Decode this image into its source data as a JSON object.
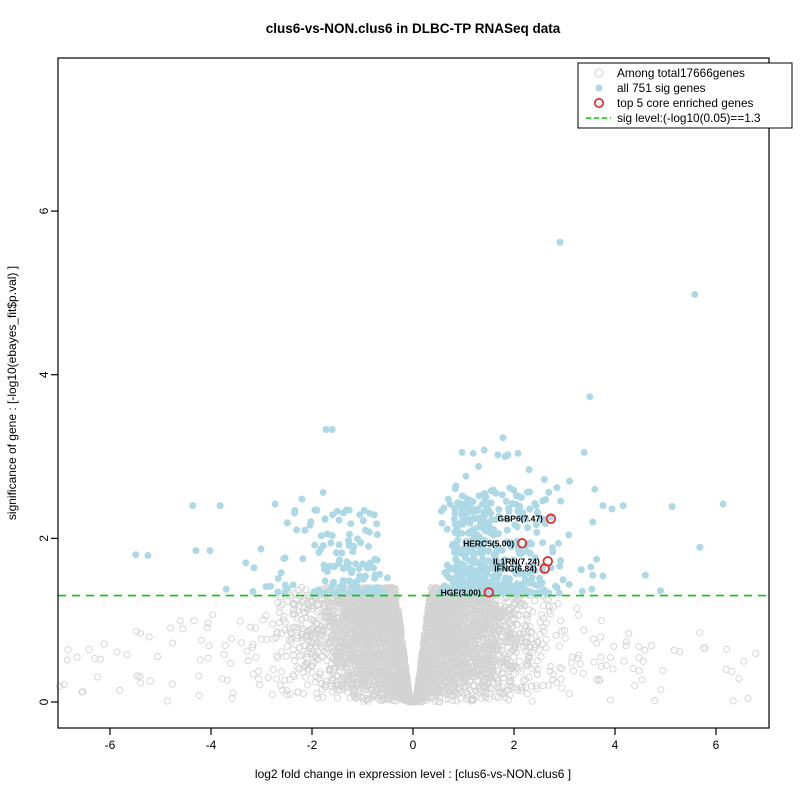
{
  "chart_data": {
    "type": "scatter",
    "subtype": "volcano-plot",
    "title": "clus6-vs-NON.clus6 in DLBC-TP RNASeq data",
    "xlabel": "log2 fold change in expression level : [clus6-vs-NON.clus6 ]",
    "ylabel": "significance of gene : [-log10(ebayes_fit$p.val) ]",
    "xlim": [
      -7.05,
      7.07
    ],
    "ylim": [
      -0.32,
      7.87
    ],
    "xticks": [
      -6,
      -4,
      -2,
      0,
      2,
      4,
      6
    ],
    "yticks": [
      0,
      2,
      4,
      6
    ],
    "grid": false,
    "legend_position": "top-right",
    "colors": {
      "grey": "#D3D3D3",
      "blue": "#ADD8E6",
      "red": "#E02727",
      "green": "#00CC00",
      "frame": "#000000"
    },
    "sig_line": {
      "y": 1.3,
      "style": "dashed",
      "color": "#00CC00",
      "label": "sig level:(-log10(0.05)==1.3"
    },
    "series": [
      {
        "name": "Among total17666genes",
        "marker": "open-circle",
        "color": "#D3D3D3",
        "total_count": 17666,
        "description": "non-significant genes forming volcano lobes, y 0 to ~1.4, V-shaped notch reaching y=0 at x=0, sparse tails to |x|~7"
      },
      {
        "name": "all 751 sig genes",
        "marker": "filled-circle",
        "color": "#ADD8E6",
        "total_count": 751,
        "description": "significant genes above y=1.3; dense cluster x 0.5..3 y 1.33..2.1, sparser left cluster x -0.5..-3.7"
      },
      {
        "name": "top 5 core enriched genes",
        "marker": "open-circle",
        "color": "#E02727",
        "total_count": 5
      }
    ],
    "enriched_genes": [
      {
        "name": "GBP6",
        "label": "GBP6(7.47)",
        "x": 2.73,
        "y": 2.24
      },
      {
        "name": "HERC5",
        "label": "HERC5(5.00)",
        "x": 2.16,
        "y": 1.94
      },
      {
        "name": "IL1RN",
        "label": "IL1RN(7.24)",
        "x": 2.67,
        "y": 1.72
      },
      {
        "name": "IFNG",
        "label": "IFNG(6.84)",
        "x": 2.61,
        "y": 1.63
      },
      {
        "name": "HGF",
        "label": "HGF(3.00)",
        "x": 1.5,
        "y": 1.34
      }
    ],
    "blue_outliers": [
      [
        2.91,
        5.62
      ],
      [
        5.58,
        4.98
      ],
      [
        3.5,
        3.73
      ],
      [
        -1.6,
        3.33
      ],
      [
        1.78,
        3.23
      ],
      [
        0.97,
        3.05
      ],
      [
        1.19,
        3.04
      ],
      [
        1.41,
        3.08
      ],
      [
        1.68,
        3.02
      ],
      [
        1.82,
        3.0
      ],
      [
        1.88,
        3.02
      ],
      [
        2.08,
        3.04
      ],
      [
        3.39,
        3.05
      ],
      [
        1.3,
        2.88
      ],
      [
        2.3,
        2.84
      ],
      [
        1.05,
        2.76
      ],
      [
        2.6,
        2.72
      ],
      [
        3.1,
        2.7
      ],
      [
        0.85,
        2.64
      ],
      [
        2.85,
        2.62
      ],
      [
        3.6,
        2.6
      ],
      [
        1.55,
        2.58
      ],
      [
        2.05,
        2.52
      ],
      [
        0.7,
        2.48
      ],
      [
        -4.36,
        2.4
      ],
      [
        -3.82,
        2.4
      ],
      [
        -2.73,
        2.42
      ],
      [
        -2.34,
        2.34
      ],
      [
        -2.49,
        2.19
      ],
      [
        -2.14,
        2.1
      ],
      [
        -2.04,
        2.16
      ],
      [
        -1.78,
        2.56
      ],
      [
        -2.2,
        2.48
      ],
      [
        -1.72,
        3.33
      ],
      [
        -5.25,
        1.79
      ],
      [
        -5.49,
        1.8
      ],
      [
        -4.3,
        1.85
      ],
      [
        -4.02,
        1.85
      ],
      [
        -3.01,
        1.87
      ],
      [
        -3.31,
        1.7
      ],
      [
        -3.15,
        1.64
      ],
      [
        -2.61,
        1.58
      ],
      [
        -2.67,
        1.51
      ],
      [
        -3.7,
        1.38
      ],
      [
        -3.17,
        1.35
      ],
      [
        -2.91,
        1.41
      ],
      [
        -2.53,
        1.43
      ],
      [
        3.76,
        2.4
      ],
      [
        3.94,
        2.36
      ],
      [
        4.16,
        2.4
      ],
      [
        5.13,
        2.39
      ],
      [
        6.14,
        2.42
      ],
      [
        3.56,
        2.2
      ],
      [
        5.68,
        1.89
      ],
      [
        3.56,
        1.55
      ],
      [
        3.76,
        1.54
      ],
      [
        3.54,
        1.38
      ],
      [
        4.6,
        1.55
      ],
      [
        4.9,
        1.36
      ]
    ],
    "procedural": {
      "seed": 42,
      "grey_lobes": {
        "n": 4600,
        "sigma_x": 1.05,
        "x_offset": 0.02,
        "x_max": 7.0,
        "notch_x0": 0.055,
        "notch_slope": 4.8,
        "y_cap": 1.4,
        "taper_start": 2.4,
        "taper_rate": 0.42,
        "min_cap": 0.22,
        "y_pow": 0.72
      },
      "grey_scatter": {
        "n": 230,
        "x_span": 7.0,
        "x_pow": 1.4,
        "y_max": 1.25,
        "tail_decay": 0.1
      },
      "blue_right": {
        "n": 500,
        "x_base": 0.5,
        "sigma": 0.95,
        "x_extra": 0.5,
        "x_max": 3.9,
        "y_base": 1.33,
        "y_span": 1.3,
        "y_pow": 2.1
      },
      "blue_left": {
        "n": 135,
        "x_base": 0.5,
        "sigma": 0.85,
        "x_extra": 0.4,
        "x_max": 3.7,
        "y_base": 1.33,
        "y_span": 1.05,
        "y_pow": 2.2
      }
    }
  },
  "legend": {
    "items": [
      {
        "label": "Among total17666genes",
        "symbol": "open-circle",
        "color": "#D3D3D3"
      },
      {
        "label": "all 751 sig genes",
        "symbol": "filled-circle",
        "color": "#ADD8E6"
      },
      {
        "label": "top 5 core enriched genes",
        "symbol": "open-circle-bold",
        "color": "#E02727"
      },
      {
        "label": "sig level:(-log10(0.05)==1.3",
        "symbol": "dashed-line",
        "color": "#00CC00"
      }
    ]
  },
  "axes": {
    "x_tick_labels": [
      "-6",
      "-4",
      "-2",
      "0",
      "2",
      "4",
      "6"
    ],
    "y_tick_labels": [
      "0",
      "2",
      "4",
      "6"
    ]
  }
}
